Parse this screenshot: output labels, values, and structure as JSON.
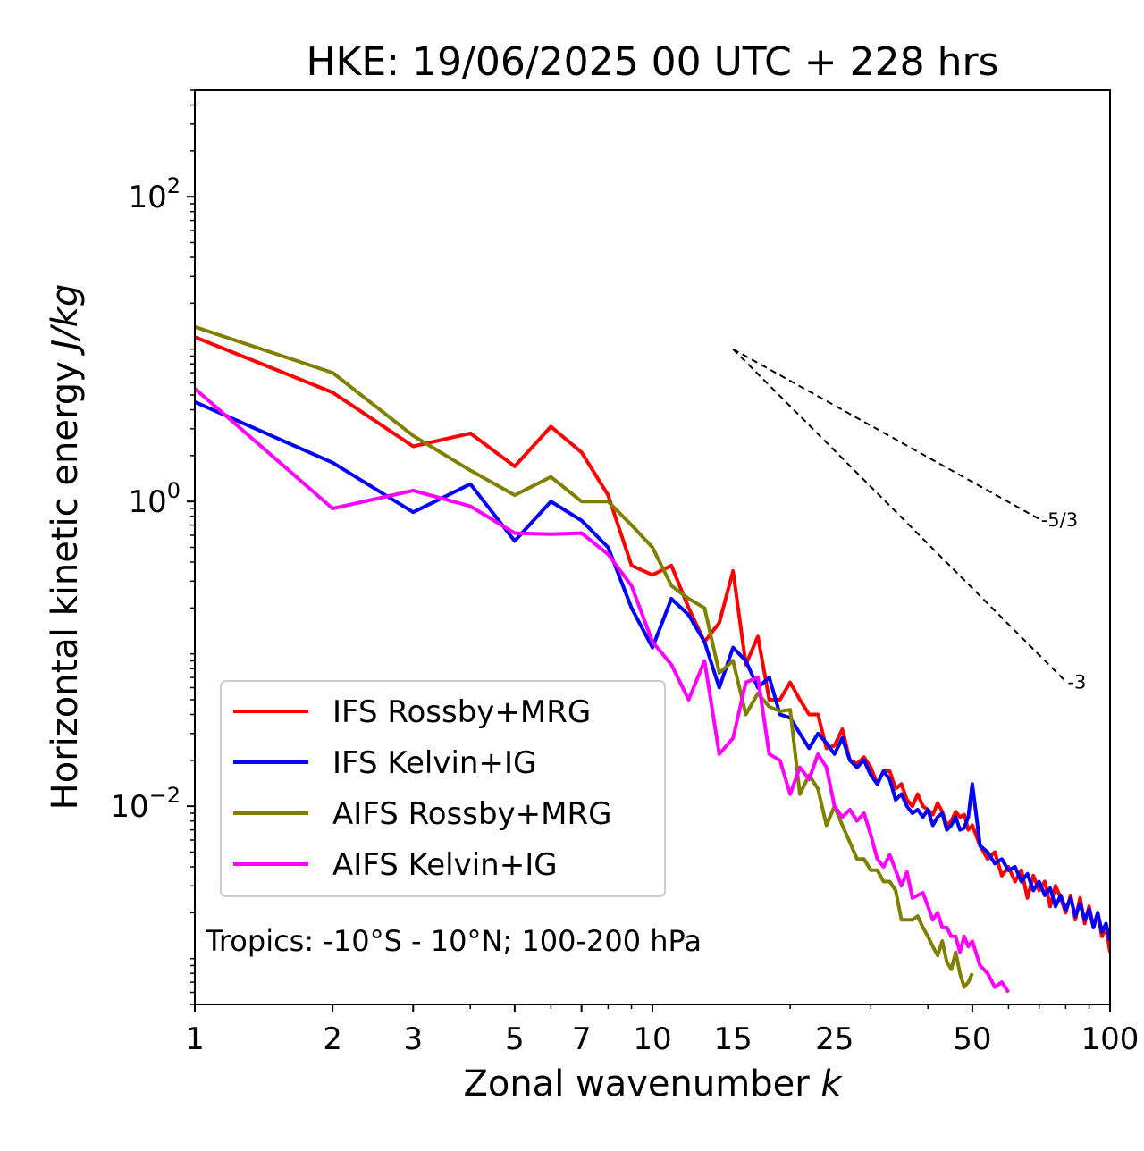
{
  "chart_data": {
    "type": "line",
    "title": "HKE: 19/06/2025 00 UTC + 228 hrs",
    "xlabel": "Zonal wavenumber",
    "xlabel_var": "k",
    "ylabel": "Horizontal kinetic energy",
    "ylabel_unit": "J/kg",
    "xscale": "log",
    "yscale": "log",
    "xlim": [
      1,
      100
    ],
    "ylim": [
      0.0005,
      500
    ],
    "xticks": [
      {
        "value": 1,
        "label": "1"
      },
      {
        "value": 2,
        "label": "2"
      },
      {
        "value": 3,
        "label": "3"
      },
      {
        "value": 5,
        "label": "5"
      },
      {
        "value": 7,
        "label": "7"
      },
      {
        "value": 10,
        "label": "10"
      },
      {
        "value": 15,
        "label": "15"
      },
      {
        "value": 25,
        "label": "25"
      },
      {
        "value": 50,
        "label": "50"
      },
      {
        "value": 100,
        "label": "100"
      }
    ],
    "yticks": [
      {
        "value": 0.01,
        "base": "10",
        "exp": "−2"
      },
      {
        "value": 1,
        "base": "10",
        "exp": "0"
      },
      {
        "value": 100,
        "base": "10",
        "exp": "2"
      }
    ],
    "annotation": "Tropics: -10°S - 10°N; 100-200 hPa",
    "legend_position": "lower-left",
    "slopes": [
      {
        "label": "-5/3",
        "exponent": -1.6667,
        "x_start": 15,
        "y_start": 10.0,
        "x_end": 70
      },
      {
        "label": "-3",
        "exponent": -3,
        "x_start": 15,
        "y_start": 10.0,
        "x_end": 80
      }
    ],
    "series": [
      {
        "name": "IFS Rossby+MRG",
        "color": "#ff0000",
        "values": [
          [
            1,
            12
          ],
          [
            2,
            5.2
          ],
          [
            3,
            2.3
          ],
          [
            4,
            2.8
          ],
          [
            5,
            1.7
          ],
          [
            6,
            3.1
          ],
          [
            7,
            2.1
          ],
          [
            8,
            1.1
          ],
          [
            9,
            0.38
          ],
          [
            10,
            0.33
          ],
          [
            11,
            0.38
          ],
          [
            12,
            0.2
          ],
          [
            13,
            0.12
          ],
          [
            14,
            0.16
          ],
          [
            15,
            0.35
          ],
          [
            16,
            0.085
          ],
          [
            17,
            0.13
          ],
          [
            18,
            0.05
          ],
          [
            19,
            0.05
          ],
          [
            20,
            0.065
          ],
          [
            21,
            0.05
          ],
          [
            22,
            0.04
          ],
          [
            23,
            0.04
          ],
          [
            24,
            0.024
          ],
          [
            25,
            0.025
          ],
          [
            26,
            0.032
          ],
          [
            27,
            0.02
          ],
          [
            28,
            0.019
          ],
          [
            29,
            0.021
          ],
          [
            30,
            0.018
          ],
          [
            31,
            0.014
          ],
          [
            32,
            0.017
          ],
          [
            33,
            0.017
          ],
          [
            34,
            0.013
          ],
          [
            35,
            0.014
          ],
          [
            36,
            0.011
          ],
          [
            37,
            0.01
          ],
          [
            38,
            0.012
          ],
          [
            39,
            0.01
          ],
          [
            40,
            0.0095
          ],
          [
            41,
            0.0088
          ],
          [
            42,
            0.0105
          ],
          [
            43,
            0.0092
          ],
          [
            44,
            0.0075
          ],
          [
            45,
            0.008
          ],
          [
            46,
            0.0092
          ],
          [
            47,
            0.0085
          ],
          [
            48,
            0.0088
          ],
          [
            49,
            0.007
          ],
          [
            50,
            0.0075
          ],
          [
            52,
            0.0055
          ],
          [
            54,
            0.0045
          ],
          [
            56,
            0.005
          ],
          [
            58,
            0.0035
          ],
          [
            60,
            0.004
          ],
          [
            62,
            0.0032
          ],
          [
            64,
            0.0038
          ],
          [
            66,
            0.0025
          ],
          [
            68,
            0.0035
          ],
          [
            70,
            0.0028
          ],
          [
            72,
            0.0032
          ],
          [
            74,
            0.0022
          ],
          [
            76,
            0.003
          ],
          [
            78,
            0.0025
          ],
          [
            80,
            0.002
          ],
          [
            82,
            0.0026
          ],
          [
            84,
            0.0018
          ],
          [
            86,
            0.0025
          ],
          [
            88,
            0.0017
          ],
          [
            90,
            0.0022
          ],
          [
            92,
            0.0016
          ],
          [
            94,
            0.002
          ],
          [
            96,
            0.0014
          ],
          [
            98,
            0.0016
          ],
          [
            100,
            0.0011
          ]
        ]
      },
      {
        "name": "IFS Kelvin+IG",
        "color": "#0000ff",
        "values": [
          [
            1,
            4.5
          ],
          [
            2,
            1.8
          ],
          [
            3,
            0.85
          ],
          [
            4,
            1.3
          ],
          [
            5,
            0.55
          ],
          [
            6,
            1.0
          ],
          [
            7,
            0.75
          ],
          [
            8,
            0.5
          ],
          [
            9,
            0.2
          ],
          [
            10,
            0.11
          ],
          [
            11,
            0.23
          ],
          [
            12,
            0.18
          ],
          [
            13,
            0.12
          ],
          [
            14,
            0.06
          ],
          [
            15,
            0.11
          ],
          [
            16,
            0.09
          ],
          [
            17,
            0.06
          ],
          [
            18,
            0.07
          ],
          [
            19,
            0.04
          ],
          [
            20,
            0.038
          ],
          [
            21,
            0.03
          ],
          [
            22,
            0.024
          ],
          [
            23,
            0.03
          ],
          [
            24,
            0.026
          ],
          [
            25,
            0.022
          ],
          [
            26,
            0.028
          ],
          [
            27,
            0.02
          ],
          [
            28,
            0.018
          ],
          [
            29,
            0.02
          ],
          [
            30,
            0.016
          ],
          [
            31,
            0.014
          ],
          [
            32,
            0.017
          ],
          [
            33,
            0.015
          ],
          [
            34,
            0.011
          ],
          [
            35,
            0.012
          ],
          [
            36,
            0.01
          ],
          [
            37,
            0.009
          ],
          [
            38,
            0.0095
          ],
          [
            39,
            0.0085
          ],
          [
            40,
            0.0095
          ],
          [
            41,
            0.0075
          ],
          [
            42,
            0.0085
          ],
          [
            43,
            0.009
          ],
          [
            44,
            0.007
          ],
          [
            45,
            0.0075
          ],
          [
            46,
            0.0085
          ],
          [
            47,
            0.007
          ],
          [
            48,
            0.0072
          ],
          [
            49,
            0.0085
          ],
          [
            50,
            0.014
          ],
          [
            52,
            0.0055
          ],
          [
            54,
            0.005
          ],
          [
            56,
            0.0042
          ],
          [
            58,
            0.0045
          ],
          [
            60,
            0.0038
          ],
          [
            62,
            0.004
          ],
          [
            64,
            0.0032
          ],
          [
            66,
            0.0036
          ],
          [
            68,
            0.0028
          ],
          [
            70,
            0.0032
          ],
          [
            72,
            0.0026
          ],
          [
            74,
            0.0029
          ],
          [
            76,
            0.0022
          ],
          [
            78,
            0.0026
          ],
          [
            80,
            0.0021
          ],
          [
            82,
            0.0025
          ],
          [
            84,
            0.0019
          ],
          [
            86,
            0.0023
          ],
          [
            88,
            0.0018
          ],
          [
            90,
            0.0021
          ],
          [
            92,
            0.0016
          ],
          [
            94,
            0.002
          ],
          [
            96,
            0.0015
          ],
          [
            98,
            0.0017
          ],
          [
            100,
            0.0013
          ]
        ]
      },
      {
        "name": "AIFS Rossby+MRG",
        "color": "#808000",
        "values": [
          [
            1,
            14
          ],
          [
            2,
            7
          ],
          [
            3,
            2.7
          ],
          [
            4,
            1.6
          ],
          [
            5,
            1.1
          ],
          [
            6,
            1.45
          ],
          [
            7,
            1.0
          ],
          [
            8,
            1.0
          ],
          [
            9,
            0.7
          ],
          [
            10,
            0.5
          ],
          [
            11,
            0.28
          ],
          [
            12,
            0.23
          ],
          [
            13,
            0.2
          ],
          [
            14,
            0.075
          ],
          [
            15,
            0.09
          ],
          [
            16,
            0.04
          ],
          [
            17,
            0.055
          ],
          [
            18,
            0.045
          ],
          [
            19,
            0.042
          ],
          [
            20,
            0.043
          ],
          [
            21,
            0.012
          ],
          [
            22,
            0.016
          ],
          [
            23,
            0.013
          ],
          [
            24,
            0.0075
          ],
          [
            25,
            0.01
          ],
          [
            26,
            0.0075
          ],
          [
            27,
            0.0058
          ],
          [
            28,
            0.0045
          ],
          [
            29,
            0.0045
          ],
          [
            30,
            0.0038
          ],
          [
            31,
            0.0038
          ],
          [
            32,
            0.0032
          ],
          [
            33,
            0.0032
          ],
          [
            34,
            0.0028
          ],
          [
            35,
            0.0018
          ],
          [
            36,
            0.0018
          ],
          [
            37,
            0.0018
          ],
          [
            38,
            0.0019
          ],
          [
            39,
            0.0016
          ],
          [
            40,
            0.0014
          ],
          [
            41,
            0.0012
          ],
          [
            42,
            0.00105
          ],
          [
            43,
            0.0013
          ],
          [
            44,
            0.00095
          ],
          [
            45,
            0.00085
          ],
          [
            46,
            0.0011
          ],
          [
            47,
            0.0008
          ],
          [
            48,
            0.00065
          ],
          [
            49,
            0.0007
          ],
          [
            50,
            0.0008
          ]
        ]
      },
      {
        "name": "AIFS Kelvin+IG",
        "color": "#ff00ff",
        "values": [
          [
            1,
            5.5
          ],
          [
            2,
            0.9
          ],
          [
            3,
            1.18
          ],
          [
            4,
            0.93
          ],
          [
            5,
            0.62
          ],
          [
            6,
            0.61
          ],
          [
            7,
            0.62
          ],
          [
            8,
            0.45
          ],
          [
            9,
            0.28
          ],
          [
            10,
            0.12
          ],
          [
            11,
            0.085
          ],
          [
            12,
            0.05
          ],
          [
            13,
            0.09
          ],
          [
            14,
            0.022
          ],
          [
            15,
            0.028
          ],
          [
            16,
            0.065
          ],
          [
            17,
            0.07
          ],
          [
            18,
            0.022
          ],
          [
            19,
            0.02
          ],
          [
            20,
            0.012
          ],
          [
            21,
            0.018
          ],
          [
            22,
            0.015
          ],
          [
            23,
            0.022
          ],
          [
            24,
            0.018
          ],
          [
            25,
            0.01
          ],
          [
            26,
            0.0085
          ],
          [
            27,
            0.0095
          ],
          [
            28,
            0.008
          ],
          [
            29,
            0.009
          ],
          [
            30,
            0.0065
          ],
          [
            31,
            0.0045
          ],
          [
            32,
            0.004
          ],
          [
            33,
            0.0048
          ],
          [
            34,
            0.0038
          ],
          [
            35,
            0.003
          ],
          [
            36,
            0.0037
          ],
          [
            37,
            0.0025
          ],
          [
            38,
            0.0026
          ],
          [
            39,
            0.0027
          ],
          [
            40,
            0.0022
          ],
          [
            41,
            0.0018
          ],
          [
            42,
            0.002
          ],
          [
            43,
            0.0016
          ],
          [
            44,
            0.0016
          ],
          [
            45,
            0.0014
          ],
          [
            46,
            0.0014
          ],
          [
            47,
            0.0011
          ],
          [
            48,
            0.0014
          ],
          [
            49,
            0.0012
          ],
          [
            50,
            0.0013
          ],
          [
            52,
            0.0009
          ],
          [
            54,
            0.0008
          ],
          [
            56,
            0.00065
          ],
          [
            58,
            0.0007
          ],
          [
            60,
            0.0006
          ]
        ]
      }
    ]
  }
}
